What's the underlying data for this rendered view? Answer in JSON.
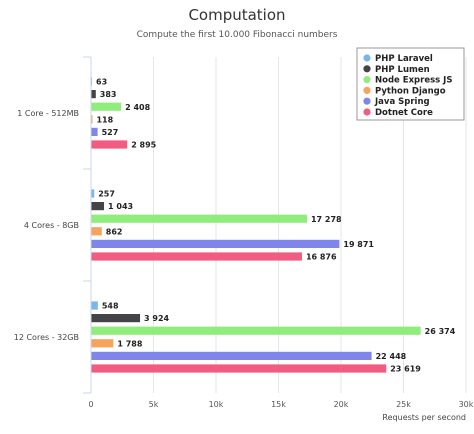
{
  "chart_data": {
    "type": "bar",
    "orientation": "horizontal",
    "title": "Computation",
    "subtitle": "Compute the first 10.000 Fibonacci numbers",
    "xlabel": "Requests per second",
    "ylabel": "",
    "xlim": [
      0,
      30000
    ],
    "tick_labels": [
      "0",
      "5k",
      "10k",
      "15k",
      "20k",
      "25k",
      "30k"
    ],
    "grid": true,
    "legend_position": "top-right",
    "categories": [
      "1 Core - 512MB",
      "4 Cores - 8GB",
      "12 Cores - 32GB"
    ],
    "series": [
      {
        "name": "PHP Laravel",
        "color": "#7cb5ec",
        "values": [
          63,
          257,
          548
        ],
        "value_labels": [
          "63",
          "257",
          "548"
        ]
      },
      {
        "name": "PHP Lumen",
        "color": "#434348",
        "values": [
          383,
          1043,
          3924
        ],
        "value_labels": [
          "383",
          "1 043",
          "3 924"
        ]
      },
      {
        "name": "Node Express JS",
        "color": "#90ed7d",
        "values": [
          2408,
          17278,
          26374
        ],
        "value_labels": [
          "2 408",
          "17 278",
          "26 374"
        ]
      },
      {
        "name": "Python Django",
        "color": "#f7a35c",
        "values": [
          118,
          862,
          1788
        ],
        "value_labels": [
          "118",
          "862",
          "1 788"
        ]
      },
      {
        "name": "Java Spring",
        "color": "#8085e9",
        "values": [
          527,
          19871,
          22448
        ],
        "value_labels": [
          "527",
          "19 871",
          "22 448"
        ]
      },
      {
        "name": "Dotnet Core",
        "color": "#f15c80",
        "values": [
          2895,
          16876,
          23619
        ],
        "value_labels": [
          "2 895",
          "16 876",
          "23 619"
        ]
      }
    ]
  }
}
